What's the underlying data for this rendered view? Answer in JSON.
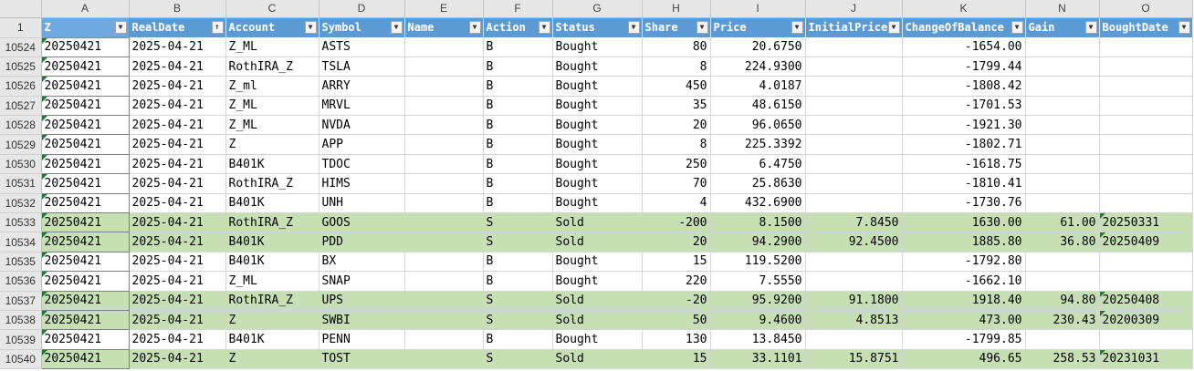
{
  "sheet": {
    "column_letters": [
      "A",
      "B",
      "C",
      "D",
      "E",
      "F",
      "G",
      "H",
      "I",
      "J",
      "K",
      "N",
      "O"
    ],
    "header_row_number": "1",
    "headers": [
      "Z",
      "RealDate",
      "Account",
      "Symbol",
      "Name",
      "Action",
      "Status",
      "Share",
      "Price",
      "InitialPrice",
      "ChangeOfBalance",
      "Gain",
      "BoughtDate"
    ],
    "sorted_column": "RealDate",
    "rows": [
      {
        "rownum": "10524",
        "z": "20250421",
        "date": "2025-04-21",
        "account": "Z_ML",
        "symbol": "ASTS",
        "name": "",
        "action": "B",
        "status": "Bought",
        "share": "80",
        "price": "20.6750",
        "initial": "",
        "change": "-1654.00",
        "gain": "",
        "bought": "",
        "sold": false
      },
      {
        "rownum": "10525",
        "z": "20250421",
        "date": "2025-04-21",
        "account": "RothIRA_Z",
        "symbol": "TSLA",
        "name": "",
        "action": "B",
        "status": "Bought",
        "share": "8",
        "price": "224.9300",
        "initial": "",
        "change": "-1799.44",
        "gain": "",
        "bought": "",
        "sold": false
      },
      {
        "rownum": "10526",
        "z": "20250421",
        "date": "2025-04-21",
        "account": "Z_ml",
        "symbol": "ARRY",
        "name": "",
        "action": "B",
        "status": "Bought",
        "share": "450",
        "price": "4.0187",
        "initial": "",
        "change": "-1808.42",
        "gain": "",
        "bought": "",
        "sold": false
      },
      {
        "rownum": "10527",
        "z": "20250421",
        "date": "2025-04-21",
        "account": "Z_ML",
        "symbol": "MRVL",
        "name": "",
        "action": "B",
        "status": "Bought",
        "share": "35",
        "price": "48.6150",
        "initial": "",
        "change": "-1701.53",
        "gain": "",
        "bought": "",
        "sold": false
      },
      {
        "rownum": "10528",
        "z": "20250421",
        "date": "2025-04-21",
        "account": "Z_ML",
        "symbol": "NVDA",
        "name": "",
        "action": "B",
        "status": "Bought",
        "share": "20",
        "price": "96.0650",
        "initial": "",
        "change": "-1921.30",
        "gain": "",
        "bought": "",
        "sold": false
      },
      {
        "rownum": "10529",
        "z": "20250421",
        "date": "2025-04-21",
        "account": "Z",
        "symbol": "APP",
        "name": "",
        "action": "B",
        "status": "Bought",
        "share": "8",
        "price": "225.3392",
        "initial": "",
        "change": "-1802.71",
        "gain": "",
        "bought": "",
        "sold": false
      },
      {
        "rownum": "10530",
        "z": "20250421",
        "date": "2025-04-21",
        "account": "B401K",
        "symbol": "TDOC",
        "name": "",
        "action": "B",
        "status": "Bought",
        "share": "250",
        "price": "6.4750",
        "initial": "",
        "change": "-1618.75",
        "gain": "",
        "bought": "",
        "sold": false
      },
      {
        "rownum": "10531",
        "z": "20250421",
        "date": "2025-04-21",
        "account": "RothIRA_Z",
        "symbol": "HIMS",
        "name": "",
        "action": "B",
        "status": "Bought",
        "share": "70",
        "price": "25.8630",
        "initial": "",
        "change": "-1810.41",
        "gain": "",
        "bought": "",
        "sold": false
      },
      {
        "rownum": "10532",
        "z": "20250421",
        "date": "2025-04-21",
        "account": "B401K",
        "symbol": "UNH",
        "name": "",
        "action": "B",
        "status": "Bought",
        "share": "4",
        "price": "432.6900",
        "initial": "",
        "change": "-1730.76",
        "gain": "",
        "bought": "",
        "sold": false
      },
      {
        "rownum": "10533",
        "z": "20250421",
        "date": "2025-04-21",
        "account": "RothIRA_Z",
        "symbol": "GOOS",
        "name": "",
        "action": "S",
        "status": "Sold",
        "share": "-200",
        "price": "8.1500",
        "initial": "7.8450",
        "change": "1630.00",
        "gain": "61.00",
        "bought": "20250331",
        "sold": true
      },
      {
        "rownum": "10534",
        "z": "20250421",
        "date": "2025-04-21",
        "account": "B401K",
        "symbol": "PDD",
        "name": "",
        "action": "S",
        "status": "Sold",
        "share": "20",
        "price": "94.2900",
        "initial": "92.4500",
        "change": "1885.80",
        "gain": "36.80",
        "bought": "20250409",
        "sold": true
      },
      {
        "rownum": "10535",
        "z": "20250421",
        "date": "2025-04-21",
        "account": "B401K",
        "symbol": "BX",
        "name": "",
        "action": "B",
        "status": "Bought",
        "share": "15",
        "price": "119.5200",
        "initial": "",
        "change": "-1792.80",
        "gain": "",
        "bought": "",
        "sold": false
      },
      {
        "rownum": "10536",
        "z": "20250421",
        "date": "2025-04-21",
        "account": "Z_ML",
        "symbol": "SNAP",
        "name": "",
        "action": "B",
        "status": "Bought",
        "share": "220",
        "price": "7.5550",
        "initial": "",
        "change": "-1662.10",
        "gain": "",
        "bought": "",
        "sold": false
      },
      {
        "rownum": "10537",
        "z": "20250421",
        "date": "2025-04-21",
        "account": "RothIRA_Z",
        "symbol": "UPS",
        "name": "",
        "action": "S",
        "status": "Sold",
        "share": "-20",
        "price": "95.9200",
        "initial": "91.1800",
        "change": "1918.40",
        "gain": "94.80",
        "bought": "20250408",
        "sold": true
      },
      {
        "rownum": "10538",
        "z": "20250421",
        "date": "2025-04-21",
        "account": "Z",
        "symbol": "SWBI",
        "name": "",
        "action": "S",
        "status": "Sold",
        "share": "50",
        "price": "9.4600",
        "initial": "4.8513",
        "change": "473.00",
        "gain": "230.43",
        "bought": "20200309",
        "sold": true
      },
      {
        "rownum": "10539",
        "z": "20250421",
        "date": "2025-04-21",
        "account": "B401K",
        "symbol": "PENN",
        "name": "",
        "action": "B",
        "status": "Bought",
        "share": "130",
        "price": "13.8450",
        "initial": "",
        "change": "-1799.85",
        "gain": "",
        "bought": "",
        "sold": false
      },
      {
        "rownum": "10540",
        "z": "20250421",
        "date": "2025-04-21",
        "account": "Z",
        "symbol": "TOST",
        "name": "",
        "action": "S",
        "status": "Sold",
        "share": "15",
        "price": "33.1101",
        "initial": "15.8751",
        "change": "496.65",
        "gain": "258.53",
        "bought": "20231031",
        "sold": true
      }
    ]
  },
  "colors": {
    "header_fill": "#5b9bd5",
    "sold_row_fill": "#c6e0b4",
    "gridline": "#d4d4d4"
  },
  "icons": {
    "filter": "filter-dropdown-icon",
    "sort": "sort-ascending-icon"
  }
}
